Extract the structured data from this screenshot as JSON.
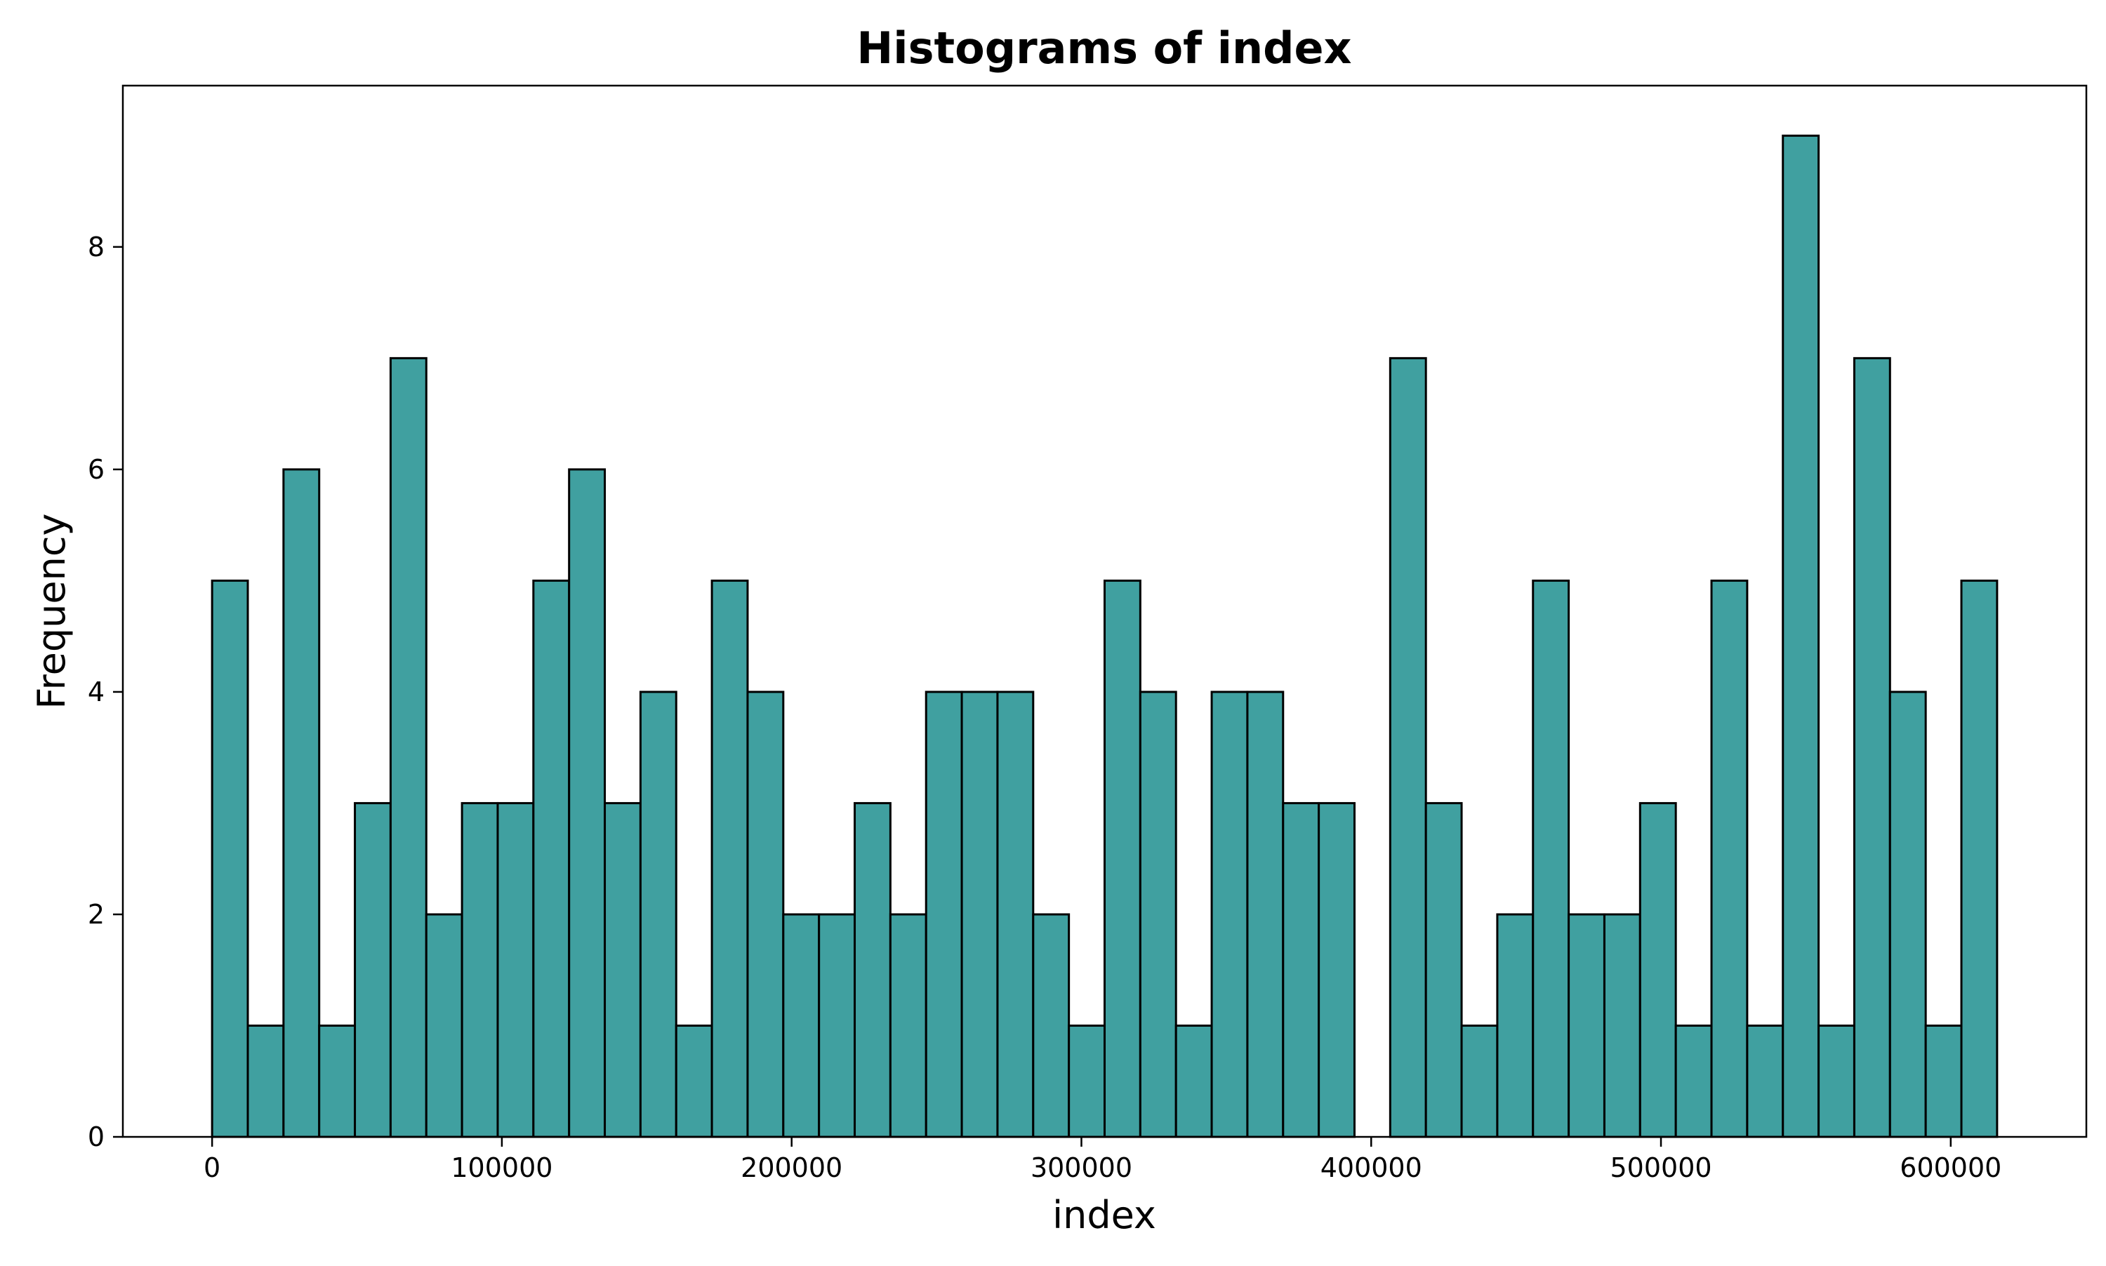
{
  "chart_data": {
    "type": "bar",
    "title": "Histograms of index",
    "xlabel": "index",
    "ylabel": "Frequency",
    "bar_color": "#40a0a0",
    "edge_color": "#000000",
    "grid": false,
    "legend": "none",
    "xlim": [
      -30800,
      646800
    ],
    "ylim": [
      0,
      9.45
    ],
    "x_ticks": [
      {
        "value": 0,
        "label": "0"
      },
      {
        "value": 100000,
        "label": "100000"
      },
      {
        "value": 200000,
        "label": "200000"
      },
      {
        "value": 300000,
        "label": "300000"
      },
      {
        "value": 400000,
        "label": "400000"
      },
      {
        "value": 500000,
        "label": "500000"
      },
      {
        "value": 600000,
        "label": "600000"
      }
    ],
    "y_ticks": [
      {
        "value": 0,
        "label": "0"
      },
      {
        "value": 2,
        "label": "2"
      },
      {
        "value": 4,
        "label": "4"
      },
      {
        "value": 6,
        "label": "6"
      },
      {
        "value": 8,
        "label": "8"
      }
    ],
    "bins": {
      "start": 0,
      "end": 616000,
      "count": 50
    },
    "values": [
      5,
      1,
      6,
      1,
      3,
      7,
      2,
      3,
      3,
      5,
      6,
      3,
      4,
      1,
      5,
      4,
      2,
      2,
      3,
      2,
      4,
      4,
      4,
      2,
      1,
      5,
      4,
      1,
      4,
      4,
      3,
      3,
      0,
      7,
      3,
      1,
      2,
      5,
      2,
      2,
      3,
      1,
      5,
      1,
      9,
      1,
      7,
      4,
      1,
      5
    ]
  }
}
